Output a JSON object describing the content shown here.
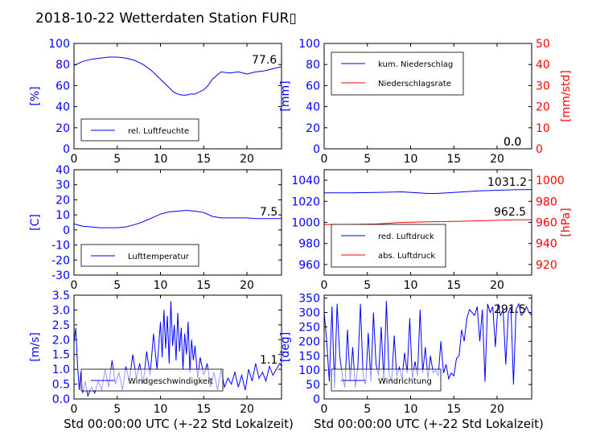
{
  "title": "2018-10-22 Wetterdaten Station FUR",
  "title_glyph": "▯",
  "xlabel": "Std 00:00:00 UTC (+-22 Std Lokalzeit)",
  "colors": {
    "primary": "#0000ff",
    "secondary": "#ff0000",
    "axis": "#000000"
  },
  "chart_data": [
    {
      "id": "humidity",
      "type": "line",
      "xlim": [
        0,
        24
      ],
      "xticks": [
        0,
        5,
        10,
        15,
        20
      ],
      "ylim": [
        0,
        100
      ],
      "yticks": [
        0,
        20,
        40,
        60,
        80,
        100
      ],
      "ylabel": "[%]",
      "legend": {
        "position": "lower-left",
        "entries": [
          "rel. Luftfeuchte"
        ]
      },
      "annotations": [
        "77.6"
      ],
      "series": [
        {
          "name": "rel. Luftfeuchte",
          "color": "#0000ff",
          "x": [
            0,
            1,
            2,
            3,
            4,
            5,
            6,
            7,
            8,
            9,
            10,
            11,
            11.5,
            12,
            12.5,
            13,
            13.5,
            14,
            15,
            15.5,
            16,
            17,
            18,
            19,
            20,
            21,
            22,
            23,
            24
          ],
          "y": [
            79,
            83,
            85,
            86,
            87,
            87,
            86,
            84,
            80,
            74,
            66,
            58,
            54,
            52,
            51,
            51,
            52,
            52,
            56,
            60,
            66,
            73,
            72,
            73,
            71,
            73,
            74,
            76,
            78
          ]
        }
      ]
    },
    {
      "id": "precip",
      "type": "line",
      "xlim": [
        0,
        24
      ],
      "xticks": [
        0,
        5,
        10,
        15,
        20
      ],
      "ylim": [
        0,
        100
      ],
      "yticks": [
        0,
        20,
        40,
        60,
        80,
        100
      ],
      "ylabel": "[mm]",
      "y2lim": [
        0,
        50
      ],
      "y2ticks": [
        0,
        10,
        20,
        30,
        40,
        50
      ],
      "y2label": "[mm/std]",
      "legend": {
        "position": "upper-left",
        "entries": [
          "kum. Niederschlag",
          "Niederschlagsrate"
        ]
      },
      "annotations": [
        "0.0",
        "0.0"
      ],
      "series": [
        {
          "name": "kum. Niederschlag",
          "color": "#0000ff",
          "axis": "left",
          "x": [
            0,
            24
          ],
          "y": [
            0,
            0
          ]
        },
        {
          "name": "Niederschlagsrate",
          "color": "#ff0000",
          "axis": "right",
          "x": [
            0,
            24
          ],
          "y": [
            0,
            0
          ]
        }
      ]
    },
    {
      "id": "temperature",
      "type": "line",
      "xlim": [
        0,
        24
      ],
      "xticks": [
        0,
        5,
        10,
        15,
        20
      ],
      "ylim": [
        -30,
        40
      ],
      "yticks": [
        -30,
        -20,
        -10,
        0,
        10,
        20,
        30,
        40
      ],
      "ylabel": "[C]",
      "legend": {
        "position": "lower-left",
        "entries": [
          "Lufttemperatur"
        ]
      },
      "annotations": [
        "7.5"
      ],
      "series": [
        {
          "name": "Lufttemperatur",
          "color": "#0000ff",
          "x": [
            0,
            1,
            2,
            3,
            4,
            5,
            6,
            7,
            8,
            9,
            10,
            11,
            12,
            13,
            14,
            15,
            16,
            17,
            18,
            19,
            20,
            21,
            22,
            23,
            24
          ],
          "y": [
            4,
            2.5,
            2,
            1.5,
            1.5,
            1.5,
            2,
            3.5,
            5.5,
            8,
            10.5,
            12,
            12.5,
            13,
            12.5,
            11.5,
            9,
            8,
            8,
            8,
            8,
            7.5,
            7.5,
            7.5,
            7.5
          ]
        }
      ]
    },
    {
      "id": "pressure",
      "type": "line",
      "xlim": [
        0,
        24
      ],
      "xticks": [
        0,
        5,
        10,
        15,
        20
      ],
      "ylim": [
        950,
        1050
      ],
      "yticks": [
        960,
        980,
        1000,
        1020,
        1040
      ],
      "y2lim": [
        910,
        1010
      ],
      "y2ticks": [
        920,
        940,
        960,
        980,
        1000
      ],
      "y2label": "[hPa]",
      "legend": {
        "position": "lower-left",
        "entries": [
          "red. Luftdruck",
          "abs. Luftdruck"
        ]
      },
      "annotations": [
        "1031.2",
        "962.5"
      ],
      "series": [
        {
          "name": "red. Luftdruck",
          "color": "#0000ff",
          "axis": "left",
          "x": [
            0,
            3,
            6,
            9,
            12,
            13,
            15,
            18,
            20,
            22,
            24
          ],
          "y": [
            1028,
            1028,
            1028.5,
            1029,
            1027.5,
            1027.5,
            1028.5,
            1030,
            1030.5,
            1031,
            1031.2
          ]
        },
        {
          "name": "abs. Luftdruck",
          "color": "#ff0000",
          "axis": "right",
          "x": [
            0,
            3,
            6,
            9,
            12,
            15,
            18,
            20,
            22,
            24
          ],
          "y": [
            958,
            958,
            958.5,
            960,
            960.5,
            961,
            961.5,
            962,
            962.5,
            962.5
          ]
        }
      ]
    },
    {
      "id": "windspeed",
      "type": "line",
      "xlim": [
        0,
        24
      ],
      "xticks": [
        0,
        5,
        10,
        15,
        20
      ],
      "ylim": [
        0,
        3.5
      ],
      "yticks": [
        0.0,
        0.5,
        1.0,
        1.5,
        2.0,
        2.5,
        3.0,
        3.5
      ],
      "ylabel": "[m/s]",
      "legend": {
        "position": "lower-left",
        "entries": [
          "Windgeschwindigkeit"
        ]
      },
      "annotations": [
        "1.1"
      ],
      "series": [
        {
          "name": "Windgeschwindigkeit",
          "color": "#0000ff",
          "x": [
            0,
            0.2,
            0.4,
            0.6,
            0.8,
            1.0,
            1.3,
            1.6,
            2.0,
            2.4,
            2.8,
            3.2,
            3.6,
            4.0,
            4.4,
            4.8,
            5.2,
            5.6,
            6.0,
            6.4,
            6.8,
            7.2,
            7.6,
            8.0,
            8.4,
            8.8,
            9.2,
            9.6,
            10.0,
            10.2,
            10.4,
            10.6,
            10.8,
            11.0,
            11.2,
            11.4,
            11.6,
            11.8,
            12.0,
            12.2,
            12.4,
            12.6,
            12.8,
            13.0,
            13.2,
            13.4,
            13.6,
            13.8,
            14.0,
            14.3,
            14.6,
            15.0,
            15.4,
            15.8,
            16.2,
            16.6,
            17.0,
            17.4,
            17.8,
            18.2,
            18.6,
            19.0,
            19.4,
            19.8,
            20.2,
            20.6,
            21.0,
            21.4,
            21.8,
            22.2,
            22.6,
            23.0,
            23.4,
            23.8,
            24.0
          ],
          "y": [
            1.9,
            2.4,
            1.2,
            0.3,
            0.9,
            0.2,
            0.6,
            0.1,
            0.4,
            0.2,
            0.6,
            0.3,
            1.0,
            0.4,
            1.3,
            0.5,
            0.9,
            0.3,
            1.1,
            0.6,
            1.5,
            0.7,
            1.2,
            0.5,
            1.6,
            0.8,
            2.2,
            1.0,
            2.6,
            1.4,
            3.0,
            1.7,
            2.8,
            1.2,
            3.3,
            1.8,
            2.5,
            1.3,
            2.9,
            1.6,
            2.4,
            1.0,
            2.2,
            1.5,
            2.6,
            0.9,
            2.0,
            1.3,
            1.8,
            0.7,
            1.4,
            0.8,
            1.2,
            0.4,
            0.9,
            0.3,
            1.0,
            0.4,
            0.7,
            0.5,
            0.9,
            0.4,
            0.8,
            0.3,
            1.0,
            0.6,
            1.2,
            0.7,
            0.9,
            0.6,
            1.1,
            0.8,
            1.0,
            1.2,
            1.1
          ]
        }
      ]
    },
    {
      "id": "winddir",
      "type": "line",
      "xlim": [
        0,
        24
      ],
      "xticks": [
        0,
        5,
        10,
        15,
        20
      ],
      "ylim": [
        0,
        360
      ],
      "yticks": [
        0,
        50,
        100,
        150,
        200,
        250,
        300,
        350
      ],
      "ylabel": "[deg]",
      "legend": {
        "position": "lower-left",
        "entries": [
          "Windrichtung"
        ]
      },
      "annotations": [
        "291.5"
      ],
      "series": [
        {
          "name": "Windrichtung",
          "color": "#0000ff",
          "x": [
            0,
            0.3,
            0.6,
            0.9,
            1.2,
            1.5,
            1.8,
            2.1,
            2.4,
            2.7,
            3.0,
            3.3,
            3.6,
            3.9,
            4.2,
            4.5,
            4.8,
            5.1,
            5.4,
            5.7,
            6.0,
            6.3,
            6.6,
            6.9,
            7.2,
            7.5,
            7.8,
            8.1,
            8.4,
            8.7,
            9.0,
            9.3,
            9.6,
            9.9,
            10.2,
            10.5,
            10.8,
            11.1,
            11.4,
            11.7,
            12.0,
            12.3,
            12.6,
            12.9,
            13.2,
            13.5,
            13.8,
            14.1,
            14.4,
            14.7,
            15.0,
            15.3,
            15.6,
            15.9,
            16.2,
            16.5,
            16.8,
            17.1,
            17.4,
            17.7,
            18.0,
            18.3,
            18.6,
            18.9,
            19.2,
            19.5,
            19.8,
            20.1,
            20.4,
            20.7,
            21.0,
            21.3,
            21.6,
            21.9,
            22.2,
            22.5,
            22.8,
            23.1,
            23.4,
            23.7,
            24.0
          ],
          "y": [
            300,
            200,
            60,
            320,
            40,
            330,
            150,
            80,
            40,
            240,
            60,
            180,
            40,
            110,
            330,
            80,
            50,
            230,
            60,
            300,
            120,
            80,
            250,
            60,
            340,
            90,
            60,
            220,
            80,
            110,
            70,
            160,
            90,
            280,
            70,
            130,
            80,
            310,
            90,
            180,
            70,
            150,
            90,
            100,
            80,
            200,
            90,
            120,
            70,
            90,
            80,
            140,
            150,
            240,
            200,
            280,
            310,
            300,
            290,
            320,
            200,
            310,
            60,
            330,
            300,
            320,
            180,
            330,
            290,
            310,
            120,
            300,
            320,
            50,
            310,
            330,
            290,
            300,
            320,
            300,
            290
          ]
        }
      ]
    }
  ]
}
